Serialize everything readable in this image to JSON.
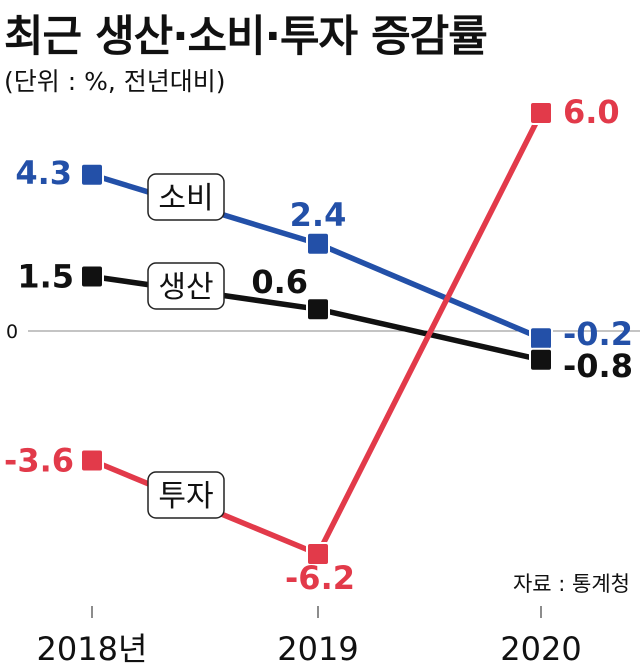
{
  "header": {
    "title": "최근 생산·소비·투자 증감률",
    "unit": "(단위 : %, 전년대비)"
  },
  "source": "자료 : 통계청",
  "chart_data": {
    "type": "line",
    "categories": [
      "2018년",
      "2019",
      "2020"
    ],
    "zero_label": "0",
    "series": [
      {
        "name": "소비",
        "values": [
          4.3,
          2.4,
          -0.2
        ],
        "labels": [
          "4.3",
          "2.4",
          "-0.2"
        ],
        "color": "#2350a8"
      },
      {
        "name": "생산",
        "values": [
          1.5,
          0.6,
          -0.8
        ],
        "labels": [
          "1.5",
          "0.6",
          "-0.8"
        ],
        "color": "#111111"
      },
      {
        "name": "투자",
        "values": [
          -3.6,
          -6.2,
          6.0
        ],
        "labels": [
          "-3.6",
          "-6.2",
          "6.0"
        ],
        "color": "#e23a4a"
      }
    ],
    "ylim": [
      -6.2,
      6.0
    ],
    "grid": false,
    "legend": "inline labels"
  }
}
